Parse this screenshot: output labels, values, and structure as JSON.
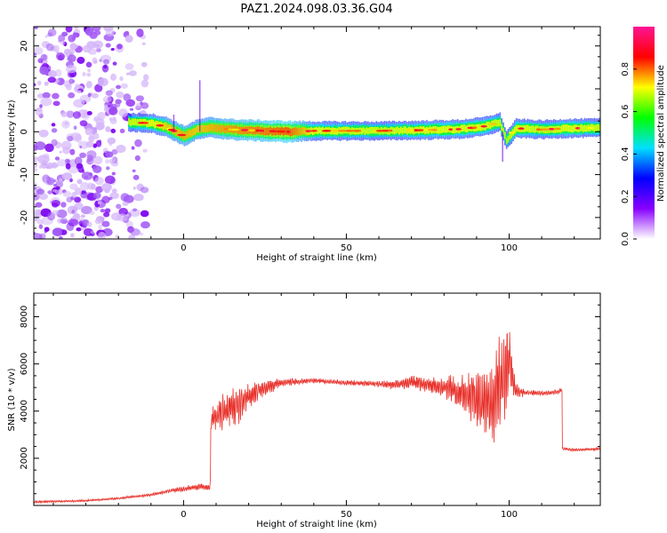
{
  "title": "PAZ1.2024.098.03.36.G04",
  "chart_data": [
    {
      "type": "heatmap",
      "xlabel": "Height of straight line (km)",
      "ylabel": "Frequency (Hz)",
      "xlim": [
        -46,
        128
      ],
      "ylim": [
        -25,
        24.5
      ],
      "xticks": [
        0,
        50,
        100
      ],
      "yticks": [
        -20,
        -10,
        0,
        10,
        20
      ],
      "colorbar": {
        "label": "Normalized spectral amplitude",
        "range": [
          0,
          1
        ],
        "ticks": [
          0.0,
          0.2,
          0.4,
          0.6,
          0.8
        ],
        "colormap": [
          "#ffffff",
          "#8800ff",
          "#0000ff",
          "#00e0ff",
          "#00ff00",
          "#ffff00",
          "#ff0000",
          "#ff1493"
        ]
      },
      "noise_region_x": [
        -46,
        -15
      ],
      "signal_track": [
        {
          "x": -17,
          "f": 2.2,
          "a": 0.55
        },
        {
          "x": -10,
          "f": 2.0,
          "a": 0.6
        },
        {
          "x": -5,
          "f": 1.0,
          "a": 0.7
        },
        {
          "x": 0,
          "f": -1.0,
          "a": 0.75
        },
        {
          "x": 4,
          "f": 0.5,
          "a": 0.7
        },
        {
          "x": 8,
          "f": 1.0,
          "a": 0.75
        },
        {
          "x": 15,
          "f": 0.5,
          "a": 0.8
        },
        {
          "x": 25,
          "f": 0.2,
          "a": 0.85
        },
        {
          "x": 32,
          "f": 0.0,
          "a": 0.9
        },
        {
          "x": 40,
          "f": 0.2,
          "a": 0.6
        },
        {
          "x": 60,
          "f": 0.2,
          "a": 0.55
        },
        {
          "x": 75,
          "f": 0.4,
          "a": 0.6
        },
        {
          "x": 85,
          "f": 0.6,
          "a": 0.6
        },
        {
          "x": 92,
          "f": 1.2,
          "a": 0.6
        },
        {
          "x": 97,
          "f": 2.2,
          "a": 0.55
        },
        {
          "x": 99,
          "f": -2.0,
          "a": 0.5
        },
        {
          "x": 102,
          "f": 0.8,
          "a": 0.6
        },
        {
          "x": 110,
          "f": 0.5,
          "a": 0.55
        },
        {
          "x": 118,
          "f": 0.8,
          "a": 0.6
        },
        {
          "x": 128,
          "f": 0.9,
          "a": 0.55
        }
      ]
    },
    {
      "type": "line",
      "xlabel": "Height of straight line (km)",
      "ylabel": "SNR (10 * v/v)",
      "xlim": [
        -46,
        128
      ],
      "ylim": [
        0,
        9000
      ],
      "xticks": [
        0,
        50,
        100
      ],
      "yticks": [
        2000,
        4000,
        6000,
        8000
      ],
      "color": "#e8302a",
      "series": [
        {
          "x": [
            -46,
            -30,
            -20,
            -10,
            -5,
            0,
            5,
            8,
            8.5,
            12,
            16,
            20,
            25,
            30,
            40,
            50,
            60,
            65,
            70,
            75,
            80,
            85,
            88,
            92,
            95,
            97,
            99,
            100,
            102,
            105,
            110,
            115,
            116,
            116.5,
            120,
            128
          ],
          "y": [
            150,
            200,
            300,
            450,
            600,
            700,
            800,
            750,
            3600,
            4000,
            4200,
            4600,
            5000,
            5200,
            5300,
            5200,
            5150,
            5100,
            5250,
            5100,
            5000,
            4800,
            4600,
            4500,
            4200,
            5400,
            5200,
            6200,
            4800,
            4800,
            4750,
            4800,
            4900,
            2400,
            2350,
            2400
          ],
          "amplitude": [
            40,
            40,
            40,
            60,
            80,
            100,
            120,
            120,
            400,
            700,
            700,
            500,
            300,
            150,
            100,
            100,
            120,
            200,
            250,
            300,
            350,
            700,
            900,
            1200,
            1500,
            1700,
            1800,
            1500,
            300,
            100,
            100,
            100,
            100,
            60,
            60,
            60
          ]
        }
      ]
    }
  ]
}
